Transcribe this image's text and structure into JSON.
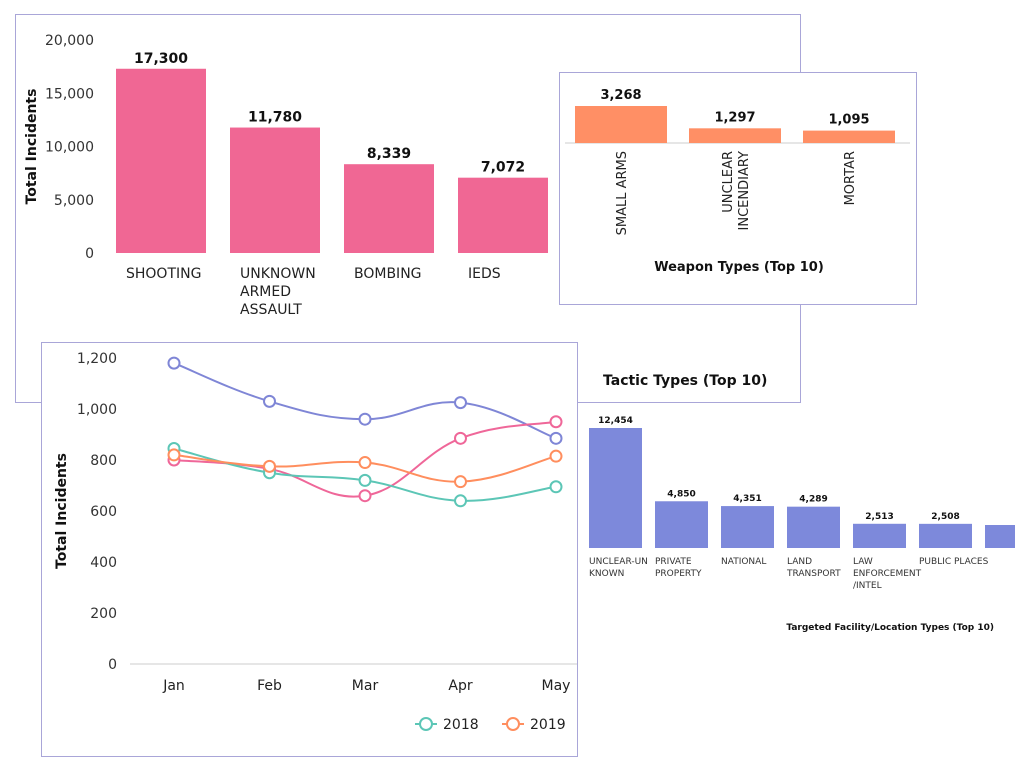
{
  "colors": {
    "tactic_bar": "#f06794",
    "weapon_bar": "#ff8f65",
    "location_bar": "#7d89db",
    "series_2018": "#5cc6b6",
    "series_2019": "#ff8e5e",
    "series_c": "#ef6799",
    "series_d": "#7f86d6",
    "panel_border": "#a9a6d8",
    "grid": "#dddddd"
  },
  "chart_data": [
    {
      "id": "tactic",
      "type": "bar",
      "title": "Tactic Types (Top 10)",
      "ylabel": "Total Incidents",
      "xlabel": "",
      "ylim": [
        0,
        20000
      ],
      "yticks": [
        "0",
        "5,000",
        "10,000",
        "15,000",
        "20,000"
      ],
      "ytick_values": [
        0,
        5000,
        10000,
        15000,
        20000
      ],
      "categories": [
        "SHOOTING",
        "UNKNOWN ARMED ASSAULT",
        "BOMBING",
        "IEDS"
      ],
      "category_lines": [
        [
          "SHOOTING"
        ],
        [
          "UNKNOWN",
          "ARMED",
          "ASSAULT"
        ],
        [
          "BOMBING"
        ],
        [
          "IEDS"
        ]
      ],
      "values": [
        17300,
        11780,
        8339,
        7072
      ],
      "data_labels": [
        "17,300",
        "11,780",
        "8,339",
        "7,072"
      ]
    },
    {
      "id": "weapon",
      "type": "bar",
      "title": "Weapon Types (Top 10)",
      "categories": [
        "SMALL ARMS",
        "UNCLEAR INCENDIARY",
        "MORTAR"
      ],
      "category_lines": [
        [
          "SMALL ARMS"
        ],
        [
          "UNCLEAR",
          "INCENDIARY"
        ],
        [
          "MORTAR"
        ]
      ],
      "values": [
        3268,
        1297,
        1095
      ],
      "data_labels": [
        "3,268",
        "1,297",
        "1,095"
      ]
    },
    {
      "id": "monthly",
      "type": "line",
      "ylabel": "Total Incidents",
      "xlabel": "",
      "ylim": [
        0,
        1200
      ],
      "yticks": [
        "0",
        "200",
        "400",
        "600",
        "800",
        "1,000",
        "1,200"
      ],
      "ytick_values": [
        0,
        200,
        400,
        600,
        800,
        1000,
        1200
      ],
      "categories": [
        "Jan",
        "Feb",
        "Mar",
        "Apr",
        "May"
      ],
      "legend_position": "bottom-right",
      "series": [
        {
          "name": "",
          "color_key": "series_d",
          "values": [
            1180,
            1030,
            960,
            1025,
            885
          ]
        },
        {
          "name": "",
          "color_key": "series_c",
          "values": [
            800,
            765,
            660,
            885,
            950
          ]
        },
        {
          "name": "2018",
          "color_key": "series_2018",
          "values": [
            845,
            750,
            720,
            640,
            695
          ]
        },
        {
          "name": "2019",
          "color_key": "series_2019",
          "values": [
            820,
            775,
            790,
            715,
            815
          ]
        }
      ],
      "legend": [
        {
          "label": "2018",
          "color_key": "series_2018"
        },
        {
          "label": "2019",
          "color_key": "series_2019"
        }
      ]
    },
    {
      "id": "location",
      "type": "bar",
      "title": "Targeted Facility/Location Types (Top 10)",
      "categories": [
        "UNCLEAR-UNKNOWN",
        "PRIVATE PROPERTY",
        "NATIONAL",
        "LAND TRANSPORT",
        "LAW ENFORCEMENT/INTEL",
        "PUBLIC PLACES"
      ],
      "category_lines": [
        [
          "UNCLEAR-UN",
          "KNOWN"
        ],
        [
          "PRIVATE",
          "PROPERTY"
        ],
        [
          "NATIONAL"
        ],
        [
          "LAND",
          "TRANSPORT"
        ],
        [
          "LAW",
          "ENFORCEMENT",
          "/INTEL"
        ],
        [
          "PUBLIC PLACES"
        ]
      ],
      "values": [
        12454,
        4850,
        4351,
        4289,
        2513,
        2508
      ],
      "data_labels": [
        "12,454",
        "4,850",
        "4,351",
        "4,289",
        "2,513",
        "2,508"
      ]
    }
  ]
}
